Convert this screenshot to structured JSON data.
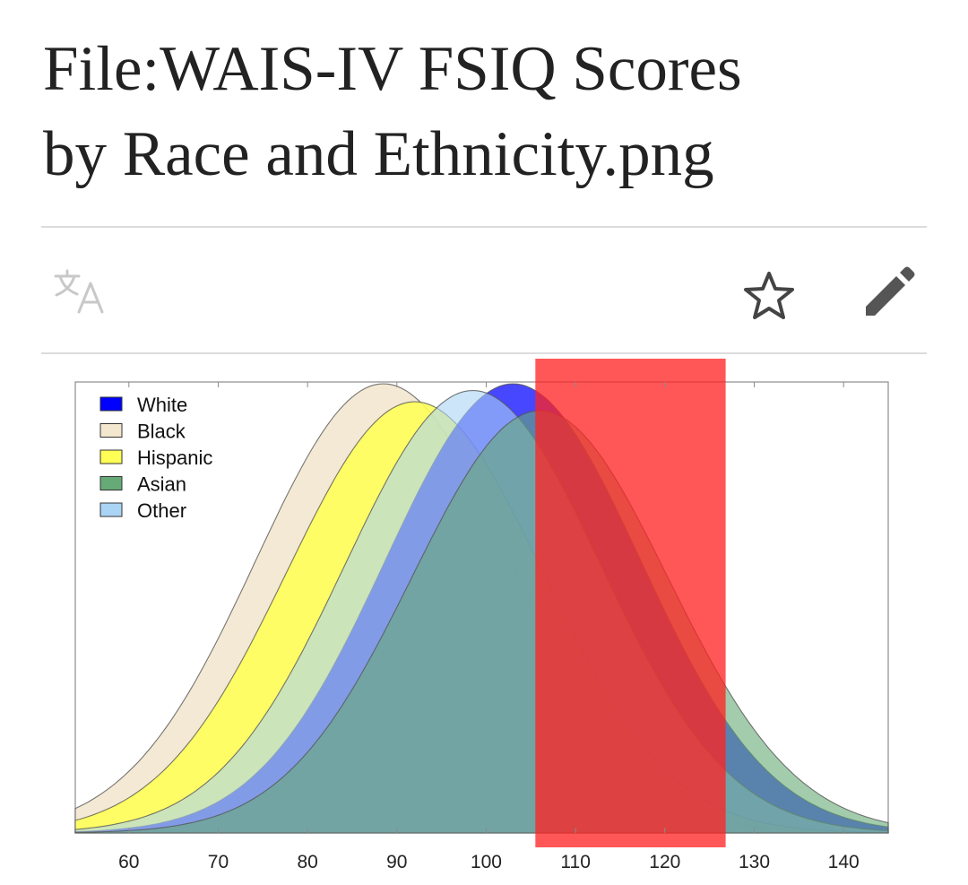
{
  "page": {
    "title_line1": "File:WAIS-IV FSIQ Scores",
    "title_line2": "by Race and Ethnicity.png"
  },
  "toolbar": {
    "translate_icon": "translate-icon",
    "watch_icon": "star-icon",
    "edit_icon": "pencil-icon"
  },
  "chart_data": {
    "type": "area",
    "title": "",
    "xlabel": "",
    "ylabel": "",
    "xlim": [
      54,
      145
    ],
    "x_ticks": [
      60,
      70,
      80,
      90,
      100,
      110,
      120,
      130,
      140
    ],
    "legend_position": "top-left",
    "grid": false,
    "series": [
      {
        "name": "White",
        "mean": 103,
        "sd": 14.3,
        "peak": 1.0,
        "color": "#0000ff",
        "opacity": 0.72
      },
      {
        "name": "Black",
        "mean": 88.5,
        "sd": 14.3,
        "peak": 1.0,
        "color": "#f3e7cf",
        "opacity": 0.9
      },
      {
        "name": "Hispanic",
        "mean": 92,
        "sd": 14.3,
        "peak": 0.96,
        "color": "#ffff55",
        "opacity": 0.88
      },
      {
        "name": "Asian",
        "mean": 106,
        "sd": 14.3,
        "peak": 0.94,
        "color": "#66aa77",
        "opacity": 0.6
      },
      {
        "name": "Other",
        "mean": 98.5,
        "sd": 14.3,
        "peak": 0.985,
        "color": "#aad4f4",
        "opacity": 0.6
      }
    ],
    "draw_order": [
      "Black",
      "Hispanic",
      "White",
      "Other",
      "Asian"
    ],
    "annotation": {
      "type": "highlight-band",
      "x_start": 105.5,
      "x_end": 126.8,
      "color": "#ff2222",
      "opacity": 0.76
    }
  }
}
